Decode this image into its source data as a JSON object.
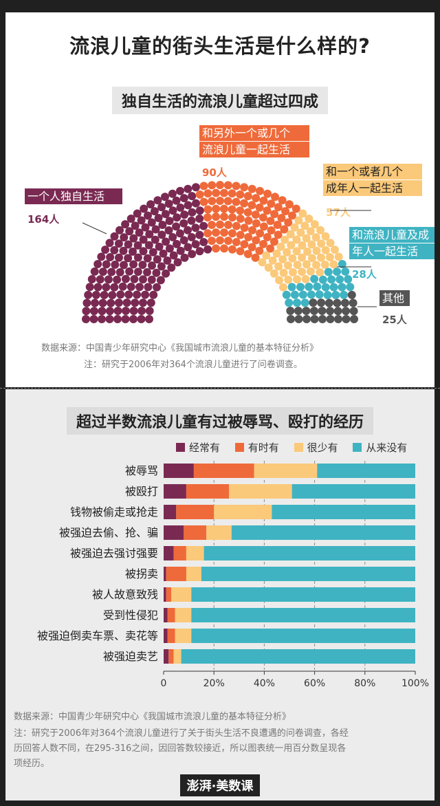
{
  "title": "流浪儿童的街头生活是什么样的?",
  "section1": {
    "subtitle": "独自生活的流浪儿童超过四成",
    "groups": [
      {
        "label_lines": [
          "一个人独自生活"
        ],
        "count": 164,
        "count_label": "164人",
        "color": "#7a2a52"
      },
      {
        "label_lines": [
          "和另外一个或几个",
          "流浪儿童一起生活"
        ],
        "count": 90,
        "count_label": "90人",
        "color": "#ef6a3a"
      },
      {
        "label_lines": [
          "和一个或者几个",
          "成年人一起生活"
        ],
        "count": 57,
        "count_label": "57人",
        "color": "#fbc97a"
      },
      {
        "label_lines": [
          "和流浪儿童及成",
          "年人一起生活"
        ],
        "count": 28,
        "count_label": "28人",
        "color": "#3fb3c2"
      },
      {
        "label_lines": [
          "其他"
        ],
        "count": 25,
        "count_label": "25人",
        "color": "#555555"
      }
    ],
    "source": "数据来源：中国青少年研究中心《我国城市流浪儿童的基本特征分析》",
    "note": "注：研究于2006年对364个流浪儿童进行了问卷调查。"
  },
  "chart_data": {
    "type": "bar",
    "orientation": "horizontal",
    "stacked": true,
    "title": "超过半数流浪儿童有过被辱骂、殴打的经历",
    "categories": [
      "被辱骂",
      "被殴打",
      "钱物被偷走或抢走",
      "被强迫去偷、抢、骗",
      "被强迫去强讨强要",
      "被拐卖",
      "被人故意致残",
      "受到性侵犯",
      "被强迫倒卖车票、卖花等",
      "被强迫卖艺"
    ],
    "series": [
      {
        "name": "经常有",
        "color": "#7a2a52",
        "values": [
          12,
          9,
          5,
          8,
          4,
          1,
          1,
          1.5,
          1.5,
          2
        ]
      },
      {
        "name": "有时有",
        "color": "#ef6a3a",
        "values": [
          24,
          17,
          15,
          9,
          5,
          8,
          2,
          3,
          3,
          2
        ]
      },
      {
        "name": "很少有",
        "color": "#fbc97a",
        "values": [
          25,
          25,
          23,
          10,
          7,
          6,
          8,
          6.5,
          6.5,
          3
        ]
      },
      {
        "name": "从来没有",
        "color": "#3fb3c2",
        "values": [
          39,
          49,
          57,
          73,
          84,
          85,
          89,
          89,
          89,
          93
        ]
      }
    ],
    "xlim": [
      0,
      100
    ],
    "xticks": [
      "0",
      "20%",
      "40%",
      "60%",
      "80%",
      "100%"
    ],
    "legend_position": "top"
  },
  "section2": {
    "source": "数据来源：中国青少年研究中心《我国城市流浪儿童的基本特征分析》",
    "note_lines": [
      "注：研究于2006年对364个流浪儿童进行了关于街头生活不良遭遇的问卷调查，各经",
      "历回答人数不同，在295-316之间，因回答数较接近，所以图表统一用百分数呈现各",
      "项经历。"
    ]
  },
  "logo": "澎湃·美数课"
}
